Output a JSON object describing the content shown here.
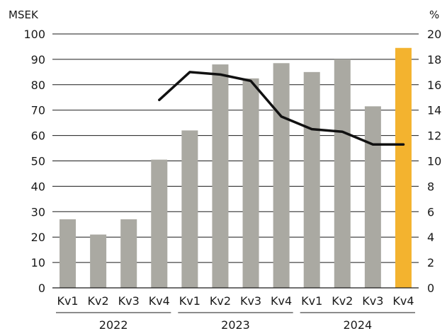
{
  "chart_data": {
    "type": "bar",
    "title": "",
    "left_axis": {
      "unit": "MSEK",
      "ylim": [
        0,
        100
      ],
      "ticks": [
        0,
        10,
        20,
        30,
        40,
        50,
        60,
        70,
        80,
        90,
        100
      ]
    },
    "right_axis": {
      "unit": "%",
      "ylim": [
        0,
        20
      ],
      "ticks": [
        0,
        2,
        4,
        6,
        8,
        10,
        12,
        14,
        16,
        18,
        20
      ]
    },
    "grid": true,
    "legend": "none",
    "categories": [
      "Kv1",
      "Kv2",
      "Kv3",
      "Kv4",
      "Kv1",
      "Kv2",
      "Kv3",
      "Kv4",
      "Kv1",
      "Kv2",
      "Kv3",
      "Kv4"
    ],
    "groups": [
      {
        "label": "2022",
        "start": 0,
        "count": 4
      },
      {
        "label": "2023",
        "start": 4,
        "count": 4
      },
      {
        "label": "2024",
        "start": 8,
        "count": 4
      }
    ],
    "series": [
      {
        "type": "bar",
        "axis": "left",
        "values": [
          27,
          21,
          27,
          50.5,
          62,
          88,
          82.5,
          88.5,
          85,
          90,
          71.5,
          94.5
        ],
        "color": "#aaa9a2",
        "highlight_color": "#f3b32f",
        "highlight_index": 11
      },
      {
        "type": "line",
        "axis": "right",
        "values": [
          null,
          null,
          null,
          14.8,
          17.0,
          16.8,
          16.3,
          13.5,
          12.5,
          12.3,
          11.3,
          11.3
        ],
        "color": "#111111"
      }
    ]
  }
}
